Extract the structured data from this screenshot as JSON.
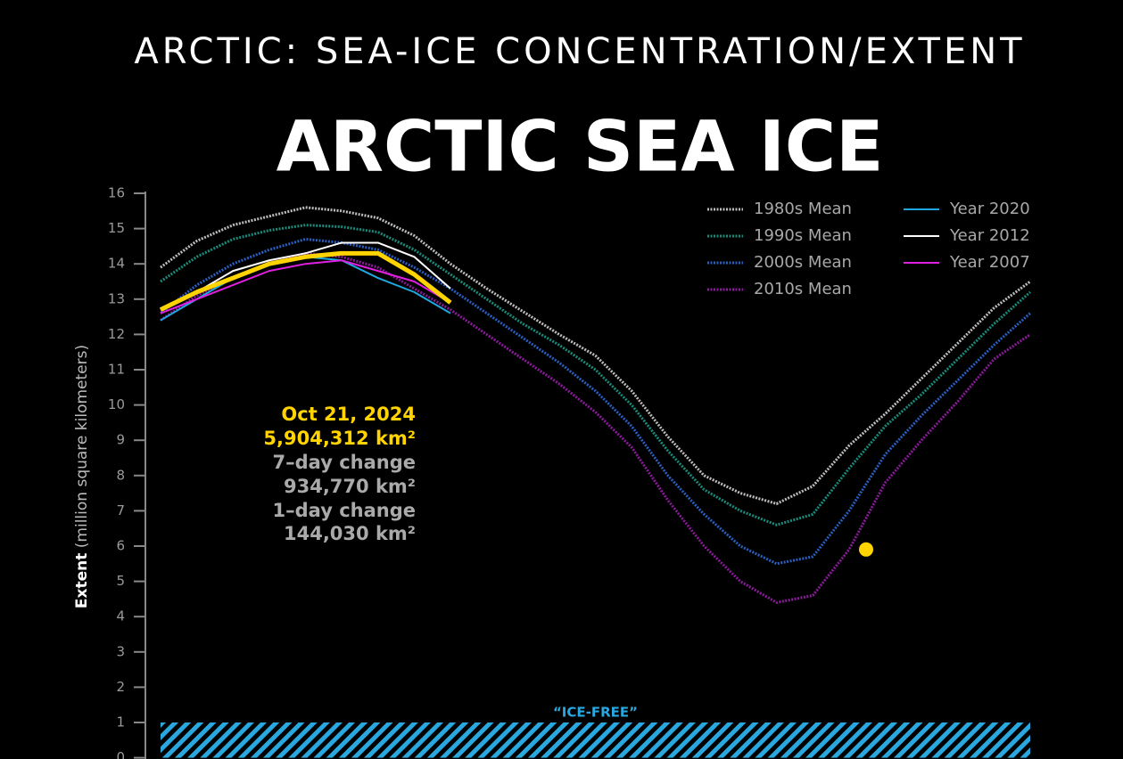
{
  "header": {
    "title": "ARCTIC: SEA-ICE CONCENTRATION/EXTENT"
  },
  "chart_data": {
    "type": "line",
    "title": "ARCTIC SEA ICE",
    "ylabel": {
      "bold": "Extent",
      "rest": "(million square kilometers)"
    },
    "ylim": [
      0,
      16
    ],
    "yticks": [
      0,
      1,
      2,
      3,
      4,
      5,
      6,
      7,
      8,
      9,
      10,
      11,
      12,
      13,
      14,
      15,
      16
    ],
    "series": [
      {
        "name": "1980s Mean",
        "color": "#bdbdbd",
        "dotted": true,
        "values": [
          13.9,
          14.65,
          15.1,
          15.35,
          15.6,
          15.5,
          15.3,
          14.8,
          14.0,
          13.3,
          12.65,
          12.0,
          11.4,
          10.4,
          9.1,
          8.0,
          7.5,
          7.2,
          7.7,
          8.85,
          9.75,
          10.75,
          11.75,
          12.75,
          13.5
        ]
      },
      {
        "name": "1990s Mean",
        "color": "#1a8a7a",
        "dotted": true,
        "values": [
          13.5,
          14.2,
          14.7,
          14.95,
          15.1,
          15.05,
          14.9,
          14.4,
          13.7,
          13.0,
          12.3,
          11.7,
          11.0,
          10.0,
          8.7,
          7.6,
          7.0,
          6.6,
          6.9,
          8.2,
          9.4,
          10.3,
          11.3,
          12.3,
          13.2
        ]
      },
      {
        "name": "2000s Mean",
        "color": "#2a5fc0",
        "dotted": true,
        "values": [
          12.6,
          13.4,
          14.0,
          14.4,
          14.7,
          14.6,
          14.4,
          13.9,
          13.3,
          12.6,
          11.9,
          11.2,
          10.4,
          9.4,
          8.0,
          6.9,
          6.0,
          5.5,
          5.7,
          7.0,
          8.6,
          9.7,
          10.7,
          11.7,
          12.6
        ]
      },
      {
        "name": "2010s Mean",
        "color": "#8a1a9a",
        "dotted": true,
        "values": [
          12.4,
          13.1,
          13.6,
          14.0,
          14.3,
          14.2,
          13.9,
          13.3,
          12.7,
          12.0,
          11.3,
          10.6,
          9.8,
          8.8,
          7.3,
          6.0,
          5.0,
          4.4,
          4.6,
          5.9,
          7.8,
          9.0,
          10.1,
          11.3,
          12.0
        ]
      },
      {
        "name": "Year 2020",
        "color": "#1fa8e0",
        "values": [
          12.4,
          13.0,
          13.6,
          14.0,
          14.2,
          14.1,
          13.6,
          13.2,
          12.6,
          null,
          null,
          null,
          null,
          null,
          null,
          null,
          null,
          null,
          null,
          null,
          null,
          null,
          null,
          null,
          null
        ]
      },
      {
        "name": "Year 2012",
        "color": "#ffffff",
        "values": [
          12.7,
          13.2,
          13.8,
          14.1,
          14.3,
          14.6,
          14.6,
          14.2,
          13.3,
          null,
          null,
          null,
          null,
          null,
          null,
          null,
          null,
          null,
          null,
          null,
          null,
          null,
          null,
          null,
          null
        ]
      },
      {
        "name": "Year 2007",
        "color": "#e020e0",
        "values": [
          12.6,
          13.0,
          13.4,
          13.8,
          14.0,
          14.1,
          13.8,
          13.5,
          12.9,
          null,
          null,
          null,
          null,
          null,
          null,
          null,
          null,
          null,
          null,
          null,
          null,
          null,
          null,
          null,
          null
        ]
      },
      {
        "color": "#ffd400",
        "bold": true,
        "values": [
          12.7,
          13.2,
          13.6,
          14.0,
          14.2,
          14.3,
          14.3,
          13.7,
          12.9,
          null,
          null,
          null,
          null,
          null,
          null,
          null,
          null,
          null,
          null,
          null,
          null,
          null,
          null,
          null,
          null
        ]
      }
    ],
    "current": {
      "value": 5.904312,
      "color": "#ffd400"
    },
    "annotations": {
      "date": "Oct 21, 2024",
      "extent": "5,904,312 km²",
      "week_label": "7–day change",
      "week": "934,770 km²",
      "day_label": "1–day change",
      "day": "144,030 km²"
    },
    "ice_free": {
      "label": "“ICE-FREE”",
      "range": [
        0,
        1
      ],
      "color": "#29a8e0"
    }
  }
}
